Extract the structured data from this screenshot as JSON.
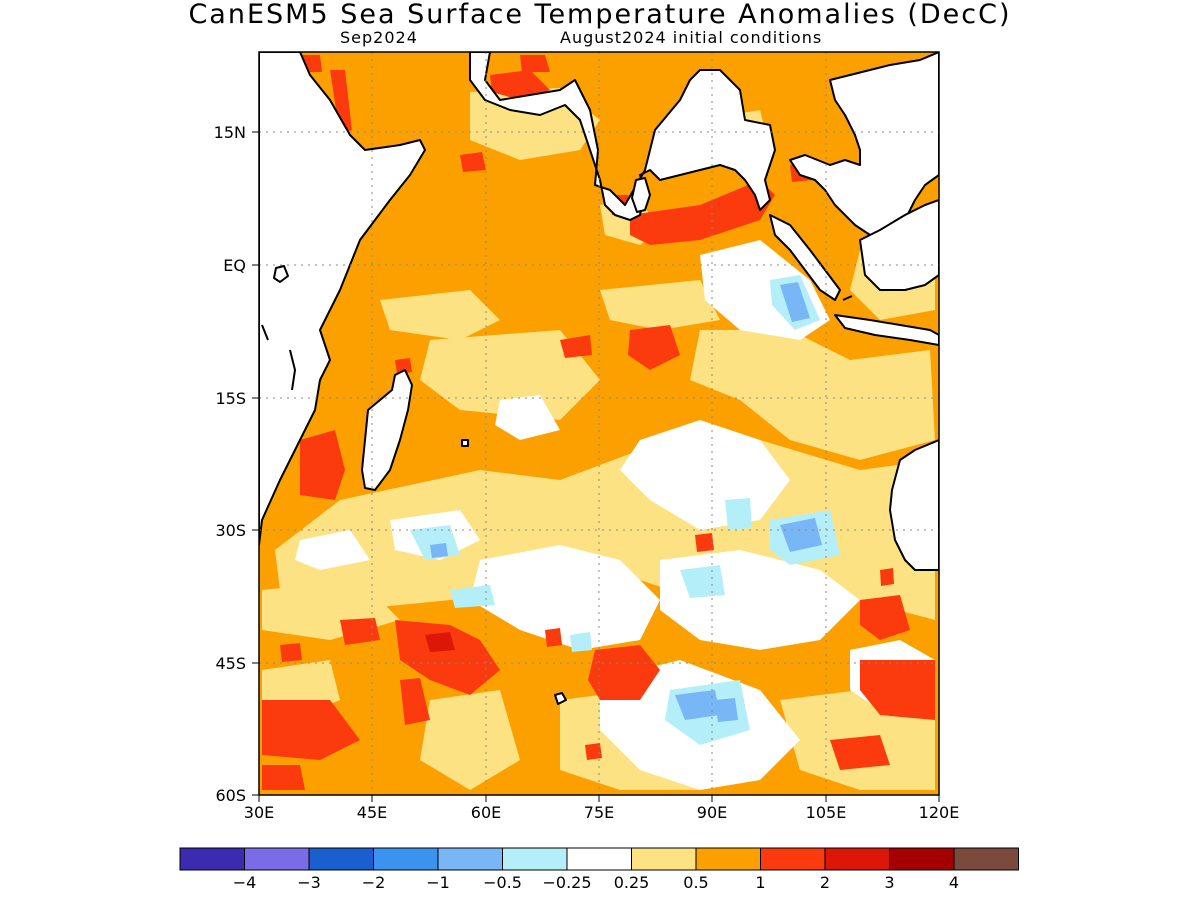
{
  "title": "CanESM5 Sea Surface Temperature Anomalies (DecC)",
  "subtitle_left": "Sep2024",
  "subtitle_right": "August2024 initial conditions",
  "map": {
    "lon_range": [
      30,
      120
    ],
    "lat_range": [
      -60,
      24
    ],
    "lat_ticks": [
      "15N",
      "EQ",
      "15S",
      "30S",
      "45S",
      "60S"
    ],
    "lon_ticks": [
      "30E",
      "45E",
      "60E",
      "75E",
      "90E",
      "105E",
      "120E"
    ],
    "grid": true
  },
  "colorbar": {
    "colors": [
      "#3b2bb0",
      "#7a6be6",
      "#1a5fd0",
      "#3a93ee",
      "#78b6f5",
      "#b4eef8",
      "#ffffff",
      "#fde283",
      "#fca000",
      "#fb3a0e",
      "#dc1707",
      "#a40000",
      "#7a4a3c"
    ],
    "labels": [
      "−4",
      "−3",
      "−2",
      "−1",
      "−0.5",
      "−0.25",
      "0.25",
      "0.5",
      "1",
      "2",
      "3",
      "4"
    ]
  }
}
